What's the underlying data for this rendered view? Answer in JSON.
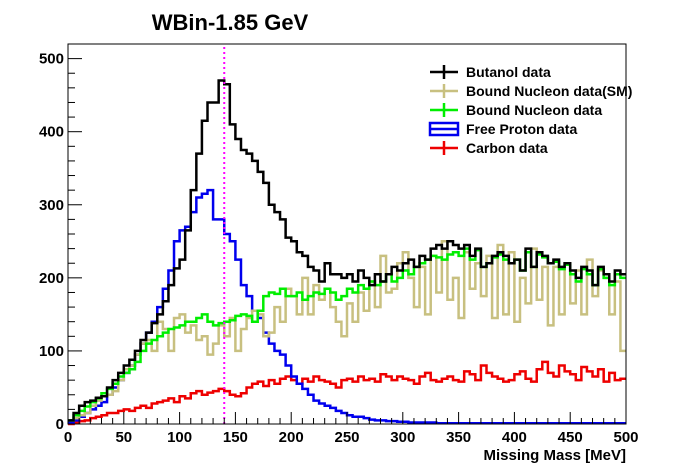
{
  "chart_data": {
    "type": "line",
    "title": "WBin-1.85 GeV",
    "xlabel": "Missing Mass [MeV]",
    "ylabel": "",
    "xlim": [
      0,
      500
    ],
    "ylim": [
      0,
      520
    ],
    "x_ticks": [
      "0",
      "50",
      "100",
      "150",
      "200",
      "250",
      "300",
      "350",
      "400",
      "450",
      "500"
    ],
    "y_ticks": [
      "0",
      "100",
      "200",
      "300",
      "400",
      "500"
    ],
    "x_tick_values": [
      0,
      50,
      100,
      150,
      200,
      250,
      300,
      350,
      400,
      450,
      500
    ],
    "y_tick_values": [
      0,
      100,
      200,
      300,
      400,
      500
    ],
    "bin_edges_start": 0,
    "bin_width": 5,
    "reference_line_x": 140,
    "reference_line_color": "#ff00ff",
    "legend_position": "top-right",
    "series": [
      {
        "name": "Butanol data",
        "color": "#000000",
        "values": [
          5,
          15,
          25,
          30,
          32,
          36,
          38,
          50,
          60,
          70,
          80,
          88,
          100,
          115,
          125,
          138,
          150,
          168,
          190,
          213,
          225,
          265,
          320,
          370,
          415,
          440,
          440,
          470,
          465,
          410,
          390,
          375,
          370,
          360,
          345,
          330,
          300,
          290,
          280,
          255,
          250,
          235,
          230,
          215,
          210,
          195,
          220,
          205,
          205,
          200,
          205,
          195,
          210,
          200,
          190,
          205,
          195,
          205,
          215,
          210,
          220,
          225,
          215,
          230,
          225,
          240,
          245,
          240,
          250,
          245,
          240,
          245,
          230,
          240,
          215,
          220,
          230,
          235,
          230,
          220,
          225,
          210,
          240,
          215,
          235,
          230,
          220,
          225,
          215,
          220,
          210,
          200,
          215,
          210,
          190,
          215,
          205,
          195,
          210,
          205
        ]
      },
      {
        "name": "Bound Nucleon data(SM)",
        "color": "#c8c080",
        "values": [
          5,
          8,
          12,
          15,
          25,
          32,
          38,
          40,
          45,
          60,
          75,
          80,
          95,
          110,
          115,
          100,
          140,
          130,
          100,
          145,
          150,
          125,
          135,
          115,
          120,
          95,
          110,
          135,
          120,
          145,
          100,
          130,
          145,
          155,
          150,
          120,
          125,
          160,
          140,
          185,
          175,
          150,
          200,
          150,
          190,
          170,
          185,
          160,
          140,
          120,
          165,
          140,
          180,
          155,
          195,
          160,
          230,
          180,
          185,
          220,
          235,
          200,
          160,
          215,
          150,
          230,
          180,
          250,
          170,
          200,
          145,
          235,
          185,
          220,
          175,
          230,
          145,
          245,
          150,
          235,
          140,
          200,
          165,
          240,
          170,
          215,
          135,
          215,
          150,
          220,
          165,
          210,
          150,
          225,
          175,
          210,
          200,
          150,
          195,
          100
        ]
      },
      {
        "name": "Bound Nucleon data",
        "color": "#00ee00",
        "values": [
          5,
          12,
          18,
          24,
          30,
          35,
          42,
          48,
          55,
          65,
          70,
          75,
          85,
          100,
          110,
          115,
          120,
          125,
          130,
          132,
          135,
          140,
          140,
          145,
          150,
          140,
          135,
          138,
          140,
          142,
          148,
          150,
          148,
          140,
          155,
          175,
          180,
          178,
          185,
          175,
          175,
          180,
          170,
          175,
          180,
          178,
          185,
          180,
          170,
          175,
          185,
          180,
          190,
          185,
          195,
          190,
          195,
          205,
          195,
          200,
          210,
          205,
          215,
          220,
          225,
          230,
          228,
          225,
          232,
          235,
          230,
          240,
          225,
          238,
          215,
          220,
          228,
          232,
          225,
          220,
          225,
          210,
          235,
          215,
          232,
          228,
          220,
          222,
          212,
          218,
          205,
          195,
          212,
          205,
          190,
          212,
          200,
          190,
          205,
          200
        ]
      },
      {
        "name": "Free Proton data",
        "color": "#0000ee",
        "values": [
          2,
          5,
          10,
          15,
          20,
          25,
          30,
          40,
          50,
          60,
          70,
          80,
          95,
          110,
          125,
          140,
          160,
          185,
          210,
          250,
          265,
          270,
          290,
          310,
          315,
          320,
          280,
          280,
          260,
          250,
          225,
          190,
          175,
          155,
          145,
          125,
          110,
          100,
          95,
          80,
          65,
          55,
          48,
          40,
          32,
          28,
          25,
          22,
          18,
          15,
          12,
          10,
          10,
          8,
          6,
          5,
          5,
          4,
          4,
          3,
          3,
          2,
          2,
          2,
          2,
          2,
          1,
          1,
          1,
          1,
          1,
          1,
          1,
          1,
          1,
          1,
          1,
          1,
          1,
          1,
          1,
          1,
          1,
          1,
          1,
          1,
          1,
          1,
          1,
          1,
          1,
          1,
          1,
          1,
          1,
          1,
          1,
          1,
          1,
          1
        ]
      },
      {
        "name": "Carbon data",
        "color": "#ee0000",
        "values": [
          0,
          2,
          4,
          5,
          8,
          10,
          12,
          15,
          15,
          18,
          20,
          18,
          22,
          25,
          22,
          28,
          30,
          32,
          35,
          30,
          38,
          35,
          42,
          45,
          40,
          43,
          45,
          48,
          45,
          40,
          38,
          42,
          50,
          55,
          58,
          52,
          60,
          55,
          62,
          65,
          60,
          55,
          62,
          58,
          65,
          60,
          58,
          55,
          50,
          60,
          62,
          58,
          65,
          60,
          62,
          58,
          68,
          65,
          60,
          65,
          62,
          60,
          55,
          65,
          70,
          60,
          58,
          62,
          65,
          60,
          58,
          72,
          68,
          60,
          80,
          70,
          65,
          62,
          58,
          60,
          68,
          72,
          62,
          58,
          75,
          85,
          70,
          65,
          80,
          72,
          68,
          60,
          78,
          72,
          65,
          75,
          58,
          70,
          60,
          62
        ]
      }
    ]
  }
}
